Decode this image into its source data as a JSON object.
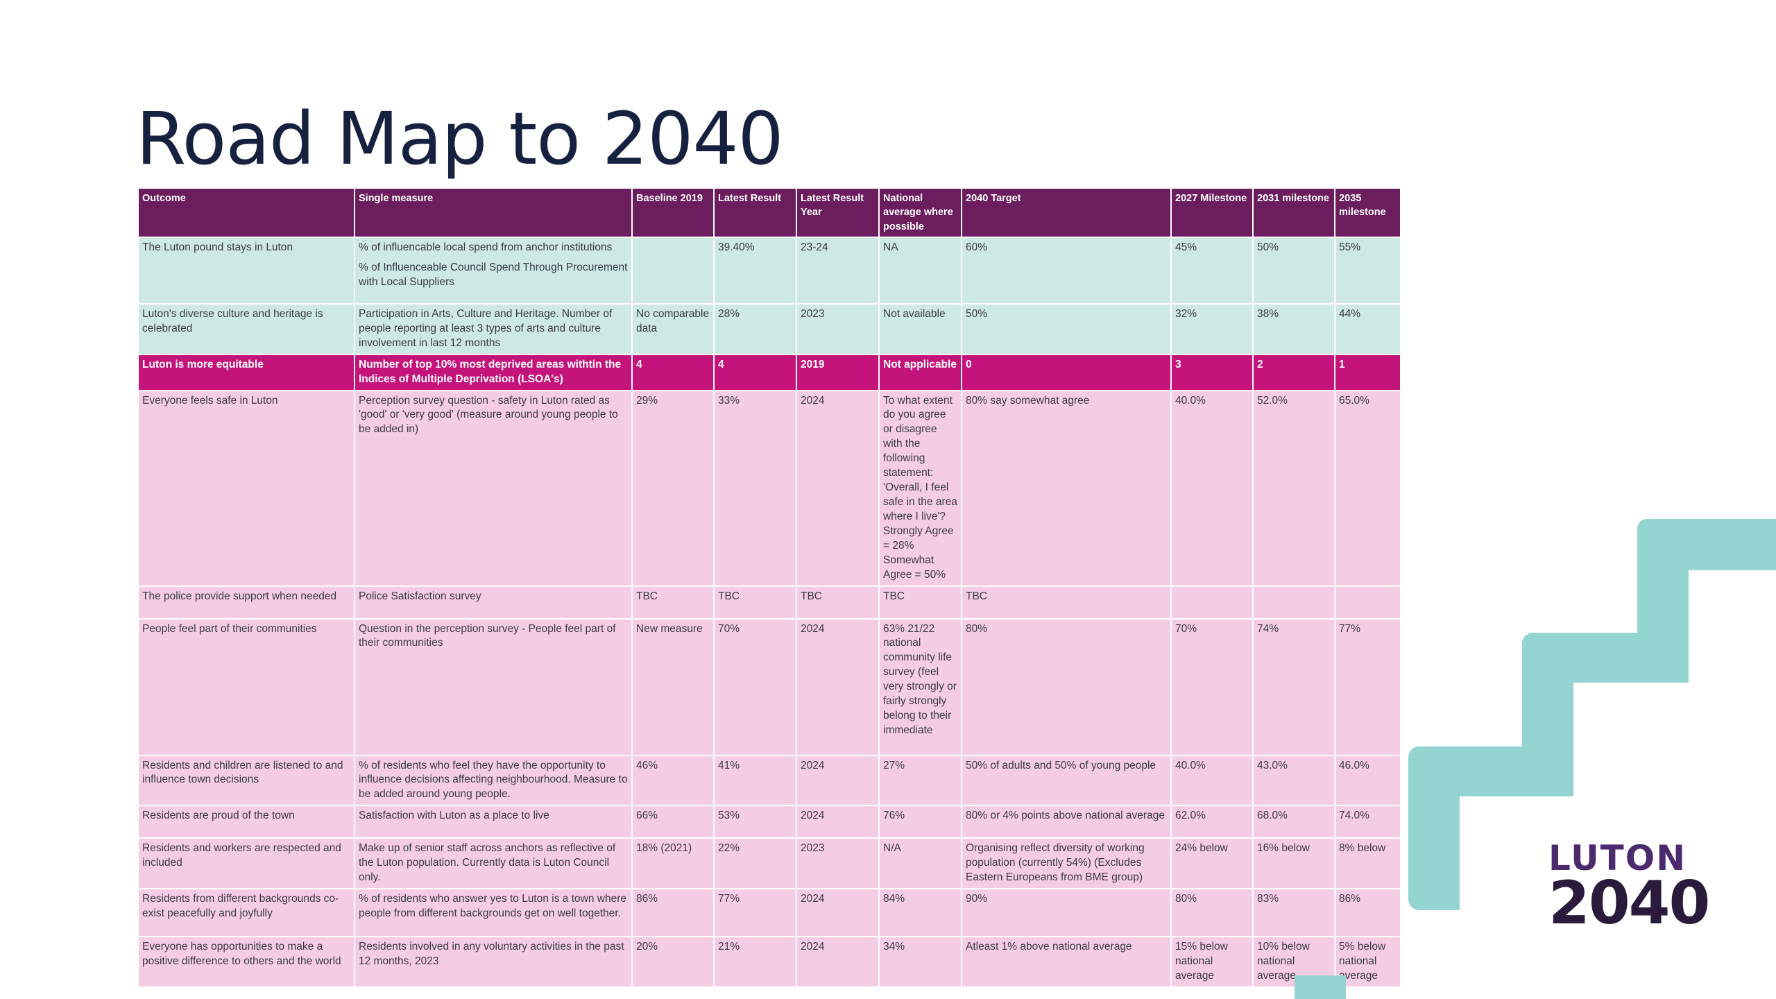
{
  "title": "Road Map to 2040",
  "logo": {
    "line1": "LUTON",
    "line2": "2040"
  },
  "colors": {
    "header": "#6b1d5e",
    "teal": "#cde8e5",
    "pink": "#f4cce3",
    "magenta": "#c4137b",
    "accent_shape": "#94d5d2"
  },
  "table": {
    "headers": [
      "Outcome",
      "Single measure",
      "Baseline 2019",
      "Latest Result",
      "Latest Result Year",
      "National average where possible",
      "2040 Target",
      "2027 Milestone",
      "2031 milestone",
      "2035 milestone"
    ],
    "rows": [
      {
        "outcome": "The Luton pound stays in Luton",
        "measure": "% of influencable local spend from anchor institutions",
        "measure2": "% of Influenceable Council Spend Through Procurement with Local Suppliers",
        "baseline": "",
        "latest": "39.40%",
        "year": "23-24",
        "national": "NA",
        "target": "60%",
        "m2027": "45%",
        "m2031": "50%",
        "m2035": "55%"
      },
      {
        "outcome": "Luton's diverse culture and heritage is celebrated",
        "measure": "Participation in Arts, Culture and Heritage. Number of people reporting at least 3 types of arts and culture involvement in last 12 months",
        "baseline": "No comparable data",
        "latest": "28%",
        "year": "2023",
        "national": "Not available",
        "target": "50%",
        "m2027": "32%",
        "m2031": "38%",
        "m2035": "44%"
      },
      {
        "outcome": "Luton is more equitable",
        "measure": "Number of top 10% most deprived areas withtin the Indices of Multiple Deprivation (LSOA's)",
        "baseline": "4",
        "latest": "4",
        "year": "2019",
        "national": "Not applicable",
        "target": "0",
        "m2027": "3",
        "m2031": "2",
        "m2035": "1"
      },
      {
        "outcome": "Everyone feels safe in Luton",
        "measure": "Perception survey question - safety in Luton rated as 'good' or 'very good' (measure around young people to be added in)",
        "baseline": "29%",
        "latest": "33%",
        "year": "2024",
        "national": "To what extent do you agree or disagree with the following statement: 'Overall, I feel safe in the area where I live'? Strongly Agree = 28% Somewhat Agree = 50%",
        "target": "80% say somewhat agree",
        "m2027": "40.0%",
        "m2031": "52.0%",
        "m2035": "65.0%"
      },
      {
        "outcome": "The police provide support when needed",
        "measure": "Police Satisfaction survey",
        "baseline": "TBC",
        "latest": "TBC",
        "year": "TBC",
        "national": "TBC",
        "target": "TBC",
        "m2027": "",
        "m2031": "",
        "m2035": ""
      },
      {
        "outcome": "People feel part of their communities",
        "measure": "Question in the perception survey - People feel part of their communities",
        "baseline": "New measure",
        "latest": "70%",
        "year": "2024",
        "national": "63% 21/22 national community life survey (feel very strongly or fairly strongly belong to their immediate",
        "target": "80%",
        "m2027": "70%",
        "m2031": "74%",
        "m2035": "77%"
      },
      {
        "outcome": "Residents and children are listened to and influence town decisions",
        "measure": "% of residents who feel they have the opportunity to influence decisions affecting neighbourhood. Measure to be added around young people.",
        "baseline": "46%",
        "latest": "41%",
        "year": "2024",
        "national": "27%",
        "target": "50% of adults and 50% of young people",
        "m2027": "40.0%",
        "m2031": "43.0%",
        "m2035": "46.0%"
      },
      {
        "outcome": "Residents are proud of the town",
        "measure": "Satisfaction with Luton as a place to live",
        "baseline": "66%",
        "latest": "53%",
        "year": "2024",
        "national": "76%",
        "target": "80% or 4% points above national average",
        "m2027": "62.0%",
        "m2031": "68.0%",
        "m2035": "74.0%"
      },
      {
        "outcome": "Residents and workers are respected and included",
        "measure": "Make up of senior staff across anchors as reflective of the Luton population. Currently data is Luton Council only.",
        "baseline": "18% (2021)",
        "latest": "22%",
        "year": "2023",
        "national": "N/A",
        "target": "Organising reflect diversity of working population (currently 54%) (Excludes Eastern Europeans from BME group)",
        "m2027": "24% below",
        "m2031": "16% below",
        "m2035": "8% below"
      },
      {
        "outcome": "Residents from different backgrounds co-exist peacefully and joyfully",
        "measure": "% of residents who answer yes to Luton is a town where people from different backgrounds get on well together.",
        "baseline": "86%",
        "latest": "77%",
        "year": "2024",
        "national": "84%",
        "target": "90%",
        "m2027": "80%",
        "m2031": "83%",
        "m2035": "86%"
      },
      {
        "outcome": "Everyone has opportunities to make a positive difference to others and the world",
        "measure": "Residents involved in any voluntary activities in the past 12 months, 2023",
        "baseline": "20%",
        "latest": "21%",
        "year": "2024",
        "national": "34%",
        "target": "Atleast 1% above national average",
        "m2027": "15% below national average",
        "m2031": "10% below national average",
        "m2035": "5% below national average"
      }
    ]
  }
}
